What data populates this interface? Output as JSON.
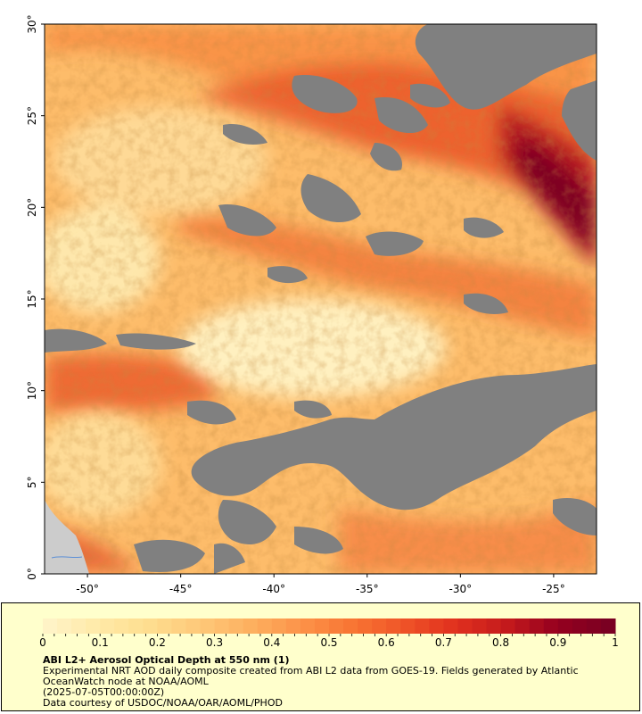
{
  "map": {
    "y_axis_labels": [
      "0°",
      "5°",
      "10°",
      "15°",
      "20°",
      "25°",
      "30°"
    ],
    "x_axis_labels": [
      "-50°",
      "-45°",
      "-40°",
      "-35°",
      "-30°",
      "-25°"
    ],
    "lat_range": [
      0,
      30
    ],
    "lon_range": [
      -52.3,
      -22.7
    ]
  },
  "colorbar": {
    "ticks": [
      "0",
      "0.1",
      "0.2",
      "0.3",
      "0.4",
      "0.5",
      "0.6",
      "0.7",
      "0.8",
      "0.9",
      "1"
    ],
    "range": [
      0,
      1
    ],
    "colors": [
      "#fff3c6",
      "#ffe9a6",
      "#fedd8e",
      "#fec778",
      "#fdaf5e",
      "#fc9148",
      "#f87432",
      "#ef5327",
      "#e0301e",
      "#c41a1c",
      "#95001f",
      "#7a0022"
    ]
  },
  "legend": {
    "title": "ABI L2+ Aerosol Optical Depth at 550 nm (1)",
    "line1": "Experimental NRT AOD daily composite created from ABI L2 data from GOES-19. Fields generated by Atlantic OceanWatch node at NOAA/AOML",
    "line2": "(2025-07-05T00:00:00Z)",
    "line3": "Data courtesy of USDOC/NOAA/OAR/AOML/PHOD"
  },
  "colors": {
    "no_data": "#808080",
    "land": "#cccccc",
    "legend_background": "#ffffcc"
  }
}
